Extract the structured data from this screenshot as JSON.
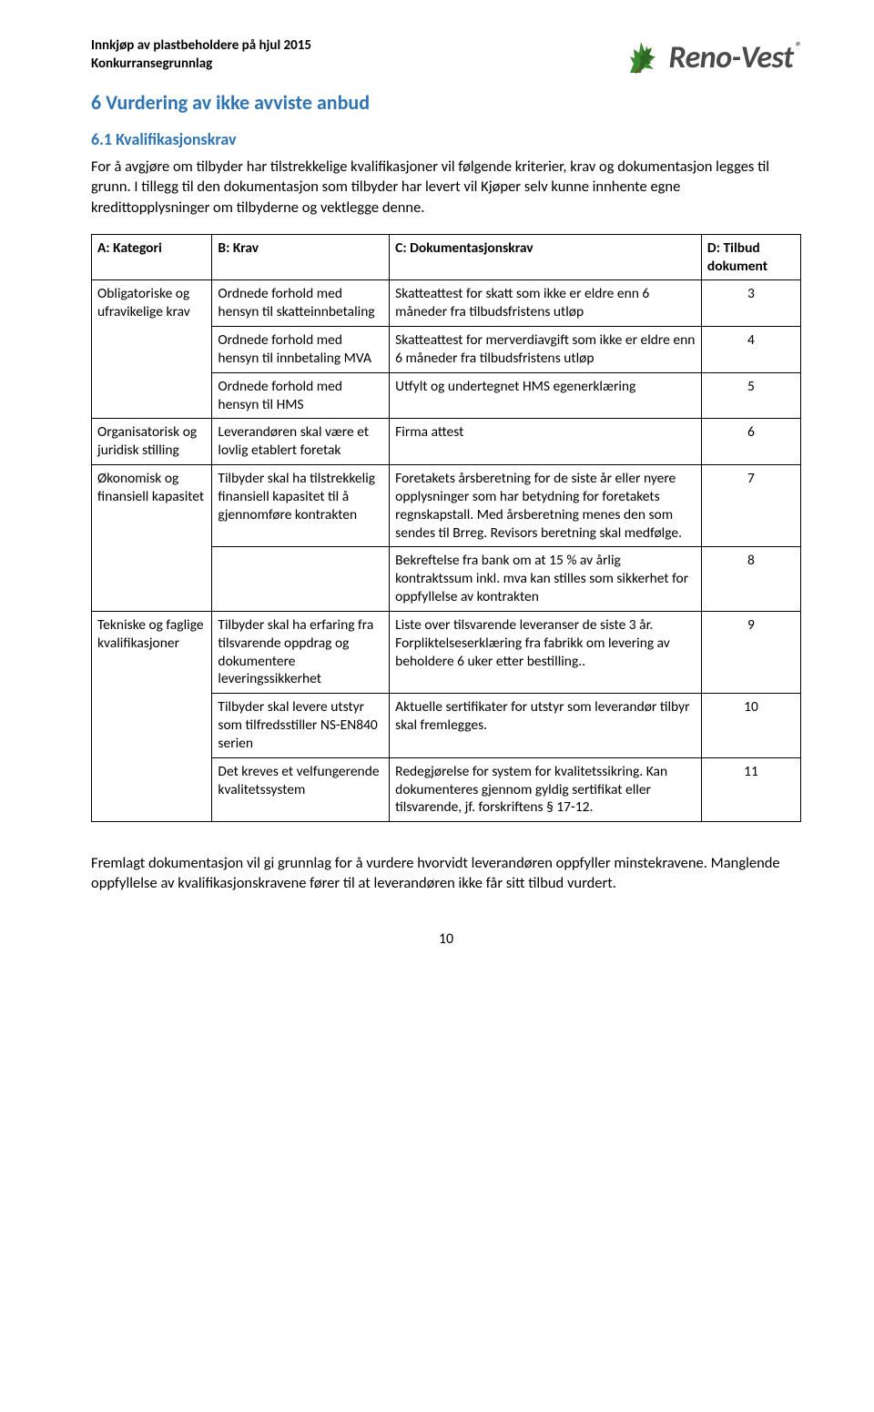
{
  "header": {
    "line1": "Innkjøp av plastbeholdere på hjul 2015",
    "line2": "Konkurransegrunnlag",
    "logo_text": "Reno-Vest",
    "logo_reg": "®"
  },
  "h1": "6   Vurdering av ikke avviste anbud",
  "h2": "6.1  Kvalifikasjonskrav",
  "intro": "For å avgjøre om tilbyder har tilstrekkelige kvalifikasjoner vil følgende kriterier, krav og dokumentasjon legges til grunn. I tillegg til den dokumentasjon som tilbyder har levert vil Kjøper selv kunne innhente egne kredittopplysninger om tilbyderne og vektlegge denne.",
  "table": {
    "headers": {
      "a": "A: Kategori",
      "b": "B: Krav",
      "c": "C: Dokumentasjonskrav",
      "d": "D: Tilbud dokument"
    },
    "groups": [
      {
        "category": "Obligatoriske og ufravikelige krav",
        "rows": [
          {
            "b": "Ordnede forhold med hensyn til skatteinnbetaling",
            "c": "Skatteattest for skatt som ikke er eldre enn 6 måneder fra tilbudsfristens utløp",
            "d": "3"
          },
          {
            "b": "Ordnede forhold med hensyn til innbetaling MVA",
            "c": "Skatteattest for merverdiavgift som ikke er eldre enn 6 måneder fra tilbudsfristens utløp",
            "d": "4"
          },
          {
            "b": "Ordnede forhold med hensyn til HMS",
            "c": "Utfylt og undertegnet HMS egenerklæring",
            "d": "5"
          }
        ]
      },
      {
        "category": "Organisatorisk og juridisk stilling",
        "rows": [
          {
            "b": "Leverandøren skal være et lovlig etablert foretak",
            "c": "Firma attest",
            "d": "6"
          }
        ]
      },
      {
        "category": "Økonomisk og finansiell kapasitet",
        "rows": [
          {
            "b": "Tilbyder skal ha tilstrekkelig finansiell kapasitet til å gjennomføre kontrakten",
            "c": "Foretakets årsberetning for de siste år eller nyere opplysninger som har betydning for foretakets regnskapstall. Med årsberetning menes den som sendes til Brreg. Revisors beretning skal medfølge.",
            "d": "7"
          },
          {
            "b": "",
            "c": "Bekreftelse fra bank om at 15 % av årlig kontraktssum inkl. mva kan stilles som sikkerhet for oppfyllelse av kontrakten",
            "d": "8"
          }
        ]
      },
      {
        "category": "Tekniske og faglige kvalifikasjoner",
        "rows": [
          {
            "b": "Tilbyder skal ha erfaring fra tilsvarende oppdrag og dokumentere leveringssikkerhet",
            "c": "Liste over tilsvarende leveranser de siste 3 år. Forpliktelseserklæring fra fabrikk om levering av beholdere 6 uker etter bestilling..",
            "d": "9"
          },
          {
            "b": "Tilbyder skal levere utstyr som tilfredsstiller NS-EN840 serien",
            "c": "Aktuelle sertifikater for utstyr som leverandør tilbyr skal fremlegges.",
            "d": "10"
          },
          {
            "b": "Det kreves et velfungerende kvalitetssystem",
            "c": "Redegjørelse for system for kvalitetssikring. Kan dokumenteres gjennom gyldig sertifikat eller tilsvarende, jf. forskriftens § 17-12.",
            "d": "11"
          }
        ]
      }
    ]
  },
  "footer_para": "Fremlagt dokumentasjon vil gi grunnlag for å vurdere hvorvidt leverandøren oppfyller minstekravene. Manglende oppfyllelse av kvalifikasjonskravene fører til at leverandøren ikke får sitt tilbud vurdert.",
  "page_number": "10",
  "colors": {
    "heading": "#2e74b5",
    "text": "#000000",
    "logo_text": "#4a4a4a",
    "leaf_green": "#3b8a2f",
    "leaf_dark": "#2c6622",
    "background": "#ffffff",
    "border": "#000000"
  }
}
